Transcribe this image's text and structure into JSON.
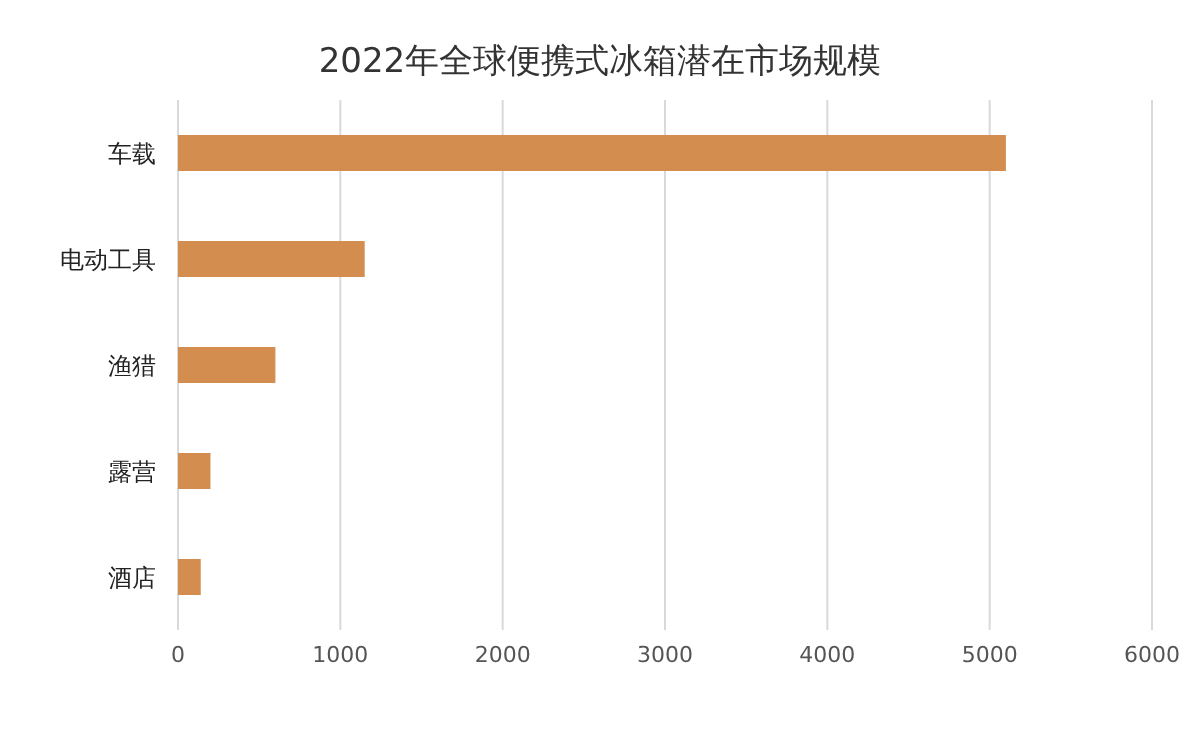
{
  "chart_data": {
    "type": "bar",
    "orientation": "horizontal",
    "title": "2022年全球便携式冰箱潜在市场规模",
    "categories": [
      "车载",
      "电动工具",
      "渔猎",
      "露营",
      "酒店"
    ],
    "values": [
      5100,
      1150,
      600,
      200,
      140
    ],
    "color": "#d38d4f",
    "xlim": [
      0,
      6000
    ],
    "xticks": [
      0,
      1000,
      2000,
      3000,
      4000,
      5000,
      6000
    ],
    "grid": "x"
  }
}
